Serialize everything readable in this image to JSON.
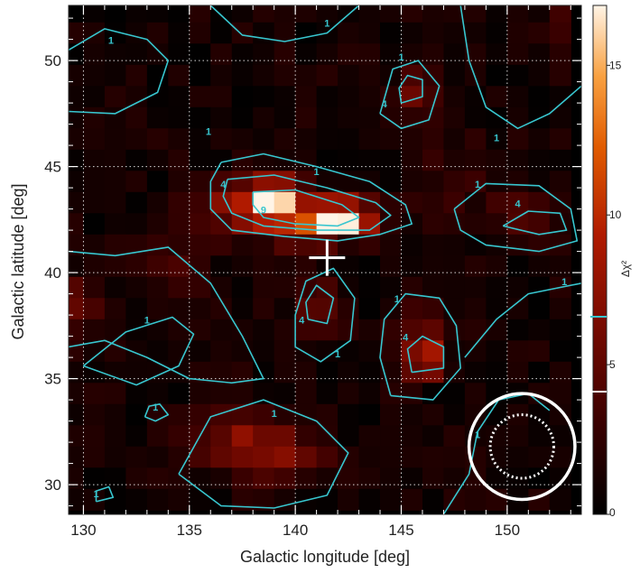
{
  "chart_data": {
    "type": "heatmap",
    "xlabel": "Galactic longitude [deg]",
    "ylabel": "Galactic latitude [deg]",
    "colorbar_label": "Δχ²",
    "xlim": [
      129.3,
      153.5
    ],
    "ylim": [
      28.6,
      52.6
    ],
    "x_ticks": [
      "130",
      "135",
      "140",
      "145",
      "150"
    ],
    "y_ticks": [
      "30",
      "35",
      "40",
      "45",
      "50"
    ],
    "colorbar_ticks": [
      "0",
      "5",
      "10",
      "15"
    ],
    "colorbar_range": [
      0,
      17
    ],
    "colorbar_markers": [
      4.1,
      6.6
    ],
    "grid": true,
    "colors": {
      "colormap": [
        "#000000",
        "#3a0000",
        "#7a0a00",
        "#b01a00",
        "#e05a00",
        "#f8a040",
        "#fff4e6"
      ],
      "contour": "#38c6cf",
      "cross": "#ffffff",
      "circle": "#ffffff",
      "grid": "#ffffff"
    },
    "contour_levels": [
      "1",
      "4",
      "9"
    ],
    "source_cross": {
      "l": 141.5,
      "b": 40.7
    },
    "circles": [
      {
        "l": 150.7,
        "b": 31.8,
        "r_deg": 2.5,
        "style": "solid"
      },
      {
        "l": 150.7,
        "b": 31.8,
        "r_deg": 1.5,
        "style": "dotted"
      }
    ],
    "grid_shape": {
      "cols": 24,
      "rows": 24,
      "pixel_deg": 1.0,
      "l_start": 129.5,
      "b_start": 52.3
    },
    "hotspots": [
      {
        "l": 139.0,
        "b": 43.4,
        "peak": 15.5,
        "sl": 0.8,
        "sb": 0.6
      },
      {
        "l": 141.8,
        "b": 42.5,
        "peak": 16.5,
        "sl": 0.7,
        "sb": 0.5
      },
      {
        "l": 137.5,
        "b": 43.0,
        "peak": 6.0,
        "sl": 1.4,
        "sb": 0.9
      },
      {
        "l": 142.8,
        "b": 42.6,
        "peak": 8.0,
        "sl": 1.0,
        "sb": 0.6
      },
      {
        "l": 140.3,
        "b": 42.2,
        "peak": 6.0,
        "sl": 1.0,
        "sb": 0.7
      },
      {
        "l": 146.2,
        "b": 35.9,
        "peak": 7.5,
        "sl": 0.6,
        "sb": 0.6
      },
      {
        "l": 145.8,
        "b": 37.0,
        "peak": 3.5,
        "sl": 0.7,
        "sb": 0.9
      },
      {
        "l": 145.5,
        "b": 48.5,
        "peak": 4.5,
        "sl": 0.6,
        "sb": 0.7
      },
      {
        "l": 137.5,
        "b": 32.0,
        "peak": 4.5,
        "sl": 1.6,
        "sb": 0.9
      },
      {
        "l": 139.5,
        "b": 31.2,
        "peak": 3.5,
        "sl": 1.5,
        "sb": 0.9
      },
      {
        "l": 141.2,
        "b": 38.4,
        "peak": 4.0,
        "sl": 0.7,
        "sb": 0.9
      },
      {
        "l": 151.0,
        "b": 42.6,
        "peak": 3.5,
        "sl": 1.2,
        "sb": 0.7
      },
      {
        "l": 129.8,
        "b": 38.4,
        "peak": 3.5,
        "sl": 0.6,
        "sb": 1.0
      },
      {
        "l": 152.8,
        "b": 51.8,
        "peak": 3.0,
        "sl": 0.6,
        "sb": 0.8
      },
      {
        "l": 134.0,
        "b": 40.0,
        "peak": 2.0,
        "sl": 1.2,
        "sb": 1.2
      },
      {
        "l": 147.5,
        "b": 44.5,
        "peak": 1.5,
        "sl": 1.5,
        "sb": 1.5
      }
    ],
    "contours": [
      {
        "label": "1",
        "label_l": 141.0,
        "label_b": 44.6,
        "points": [
          [
            136.5,
            45.2
          ],
          [
            138.5,
            45.6
          ],
          [
            141.0,
            45.0
          ],
          [
            143.5,
            44.3
          ],
          [
            145.2,
            43.2
          ],
          [
            145.5,
            42.3
          ],
          [
            144.0,
            41.8
          ],
          [
            142.0,
            41.5
          ],
          [
            139.5,
            41.7
          ],
          [
            137.0,
            42.0
          ],
          [
            136.0,
            43.0
          ],
          [
            136.0,
            44.3
          ],
          [
            136.5,
            45.2
          ]
        ]
      },
      {
        "label": "4",
        "label_l": 136.6,
        "label_b": 44.0,
        "points": [
          [
            136.8,
            44.4
          ],
          [
            139.0,
            44.6
          ],
          [
            141.5,
            44.0
          ],
          [
            143.8,
            43.3
          ],
          [
            144.5,
            42.7
          ],
          [
            143.5,
            42.0
          ],
          [
            141.0,
            42.0
          ],
          [
            138.5,
            42.2
          ],
          [
            137.0,
            42.8
          ],
          [
            136.6,
            43.6
          ],
          [
            136.8,
            44.4
          ]
        ]
      },
      {
        "label": "9",
        "label_l": 138.5,
        "label_b": 42.8,
        "points": [
          [
            138.0,
            43.8
          ],
          [
            140.0,
            43.9
          ],
          [
            142.2,
            43.2
          ],
          [
            143.0,
            42.6
          ],
          [
            142.0,
            42.2
          ],
          [
            140.0,
            42.3
          ],
          [
            138.5,
            42.6
          ],
          [
            138.0,
            43.2
          ],
          [
            138.0,
            43.8
          ]
        ]
      },
      {
        "label": "1",
        "label_l": 139.0,
        "label_b": 33.2,
        "points": [
          [
            134.5,
            30.5
          ],
          [
            136.0,
            33.2
          ],
          [
            138.5,
            34.0
          ],
          [
            141.0,
            33.0
          ],
          [
            142.5,
            31.5
          ],
          [
            141.5,
            29.5
          ],
          [
            139.0,
            28.9
          ],
          [
            136.5,
            29.0
          ],
          [
            134.5,
            30.5
          ]
        ]
      },
      {
        "label": "1",
        "label_l": 144.8,
        "label_b": 38.6,
        "points": [
          [
            144.5,
            34.2
          ],
          [
            146.5,
            34.0
          ],
          [
            147.8,
            35.5
          ],
          [
            147.6,
            37.5
          ],
          [
            146.8,
            38.8
          ],
          [
            145.2,
            39.0
          ],
          [
            144.2,
            37.8
          ],
          [
            144.0,
            36.0
          ],
          [
            144.5,
            34.2
          ]
        ]
      },
      {
        "label": "4",
        "label_l": 145.2,
        "label_b": 36.8,
        "points": [
          [
            145.5,
            35.3
          ],
          [
            147.0,
            35.5
          ],
          [
            147.0,
            36.5
          ],
          [
            146.0,
            37.0
          ],
          [
            145.3,
            36.4
          ],
          [
            145.5,
            35.3
          ]
        ]
      },
      {
        "label": "1",
        "label_l": 142.0,
        "label_b": 36.0,
        "points": [
          [
            140.0,
            36.5
          ],
          [
            141.2,
            35.8
          ],
          [
            142.6,
            36.8
          ],
          [
            142.8,
            38.8
          ],
          [
            141.8,
            40.2
          ],
          [
            140.5,
            39.6
          ],
          [
            140.0,
            38.0
          ],
          [
            140.0,
            36.5
          ]
        ]
      },
      {
        "label": "4",
        "label_l": 140.3,
        "label_b": 37.6,
        "points": [
          [
            140.6,
            37.8
          ],
          [
            141.5,
            37.6
          ],
          [
            141.8,
            38.8
          ],
          [
            141.0,
            39.4
          ],
          [
            140.5,
            38.6
          ],
          [
            140.6,
            37.8
          ]
        ]
      },
      {
        "label": "1",
        "label_l": 145.0,
        "label_b": 50.0,
        "points": [
          [
            144.0,
            47.5
          ],
          [
            144.6,
            49.6
          ],
          [
            145.8,
            50.0
          ],
          [
            146.8,
            48.8
          ],
          [
            146.3,
            47.2
          ],
          [
            145.0,
            46.8
          ],
          [
            144.0,
            47.5
          ]
        ]
      },
      {
        "label": "4",
        "label_l": 144.2,
        "label_b": 47.8,
        "points": [
          [
            145.0,
            48.0
          ],
          [
            146.0,
            48.3
          ],
          [
            146.0,
            49.1
          ],
          [
            145.3,
            49.3
          ],
          [
            144.9,
            48.7
          ],
          [
            145.0,
            48.0
          ]
        ]
      },
      {
        "label": "1",
        "label_l": 148.6,
        "label_b": 44.0,
        "points": [
          [
            147.5,
            43.0
          ],
          [
            149.0,
            44.2
          ],
          [
            151.5,
            44.1
          ],
          [
            153.0,
            43.0
          ],
          [
            153.3,
            41.5
          ],
          [
            151.5,
            41.0
          ],
          [
            149.0,
            41.3
          ],
          [
            147.8,
            42.0
          ],
          [
            147.5,
            43.0
          ]
        ]
      },
      {
        "label": "4",
        "label_l": 150.5,
        "label_b": 43.1,
        "points": [
          [
            149.8,
            42.2
          ],
          [
            151.0,
            42.9
          ],
          [
            152.5,
            42.8
          ],
          [
            152.8,
            42.0
          ],
          [
            151.5,
            41.8
          ],
          [
            149.8,
            42.2
          ]
        ]
      },
      {
        "label": "1",
        "label_l": 131.3,
        "label_b": 50.8,
        "points": [
          [
            129.3,
            50.5
          ],
          [
            131.0,
            51.5
          ],
          [
            133.0,
            51.0
          ],
          [
            134.0,
            50.0
          ],
          [
            133.5,
            48.5
          ],
          [
            131.5,
            47.5
          ],
          [
            129.3,
            47.6
          ]
        ]
      },
      {
        "label": "1",
        "label_l": 135.9,
        "label_b": 46.5,
        "points": [
          [
            129.3,
            41.0
          ],
          [
            131.5,
            40.8
          ],
          [
            134.0,
            41.2
          ],
          [
            136.0,
            39.5
          ],
          [
            137.5,
            37.0
          ],
          [
            138.5,
            35.0
          ],
          [
            137.0,
            34.8
          ],
          [
            135.0,
            35.0
          ],
          [
            133.0,
            36.0
          ],
          [
            131.0,
            36.8
          ],
          [
            129.3,
            36.5
          ]
        ]
      },
      {
        "label": "1",
        "label_l": 133.0,
        "label_b": 37.6,
        "points": [
          [
            130.0,
            35.6
          ],
          [
            132.0,
            37.2
          ],
          [
            134.2,
            37.9
          ],
          [
            135.2,
            37.1
          ],
          [
            134.5,
            35.6
          ],
          [
            132.5,
            34.7
          ],
          [
            130.0,
            35.6
          ]
        ]
      },
      {
        "label": "1",
        "label_l": 152.7,
        "label_b": 39.4,
        "points": [
          [
            148.0,
            36.0
          ],
          [
            149.5,
            37.8
          ],
          [
            151.0,
            39.0
          ],
          [
            153.5,
            39.5
          ]
        ]
      },
      {
        "label": "1",
        "label_l": 149.5,
        "label_b": 46.2,
        "points": [
          [
            147.8,
            52.6
          ],
          [
            148.2,
            50.0
          ],
          [
            149.0,
            47.8
          ],
          [
            150.5,
            46.8
          ],
          [
            152.0,
            47.5
          ],
          [
            153.5,
            48.8
          ]
        ]
      },
      {
        "label": "1",
        "label_l": 141.5,
        "label_b": 51.6,
        "points": [
          [
            136.0,
            52.6
          ],
          [
            137.5,
            51.2
          ],
          [
            139.5,
            50.9
          ],
          [
            141.5,
            51.3
          ],
          [
            143.0,
            52.6
          ]
        ]
      },
      {
        "label": "1",
        "label_l": 148.6,
        "label_b": 32.2,
        "points": [
          [
            147.0,
            28.6
          ],
          [
            148.2,
            30.5
          ],
          [
            148.6,
            32.5
          ],
          [
            149.6,
            34.0
          ],
          [
            151.0,
            34.3
          ],
          [
            152.0,
            33.5
          ]
        ]
      },
      {
        "label": "1",
        "label_l": 130.6,
        "label_b": 29.4,
        "points": [
          [
            130.6,
            29.2
          ],
          [
            131.4,
            29.4
          ],
          [
            131.2,
            29.9
          ],
          [
            130.6,
            29.7
          ],
          [
            130.6,
            29.2
          ]
        ]
      },
      {
        "label": "1",
        "label_l": 133.4,
        "label_b": 33.5,
        "points": [
          [
            132.9,
            33.2
          ],
          [
            133.4,
            33.0
          ],
          [
            134.0,
            33.3
          ],
          [
            133.6,
            33.8
          ],
          [
            133.1,
            33.7
          ],
          [
            132.9,
            33.2
          ]
        ]
      }
    ]
  }
}
